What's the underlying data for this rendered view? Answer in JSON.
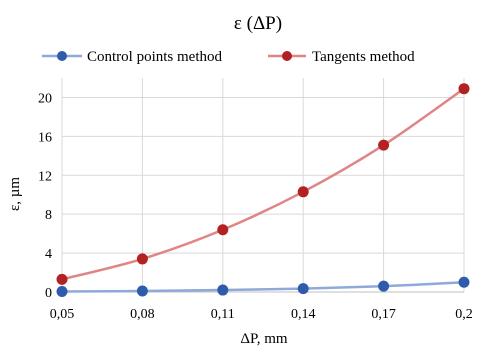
{
  "chart_data": {
    "type": "line",
    "title": "ε (ΔP)",
    "xlabel": "ΔP, mm",
    "ylabel": "ε, µm",
    "categories": [
      "0,05",
      "0,08",
      "0,11",
      "0,14",
      "0,17",
      "0,2"
    ],
    "x": [
      0.05,
      0.08,
      0.11,
      0.14,
      0.17,
      0.2
    ],
    "ylim": [
      0,
      22
    ],
    "yticks": [
      0,
      4,
      8,
      12,
      16,
      20
    ],
    "grid": true,
    "legend_position": "top",
    "series": [
      {
        "name": "Control points method",
        "values": [
          0.05,
          0.1,
          0.2,
          0.35,
          0.6,
          1.0
        ],
        "line_color": "#8eaadb",
        "marker_color": "#2e5baa"
      },
      {
        "name": "Tangents method",
        "values": [
          1.3,
          3.4,
          6.4,
          10.3,
          15.1,
          20.9
        ],
        "line_color": "#e08585",
        "marker_color": "#b22222"
      }
    ]
  }
}
